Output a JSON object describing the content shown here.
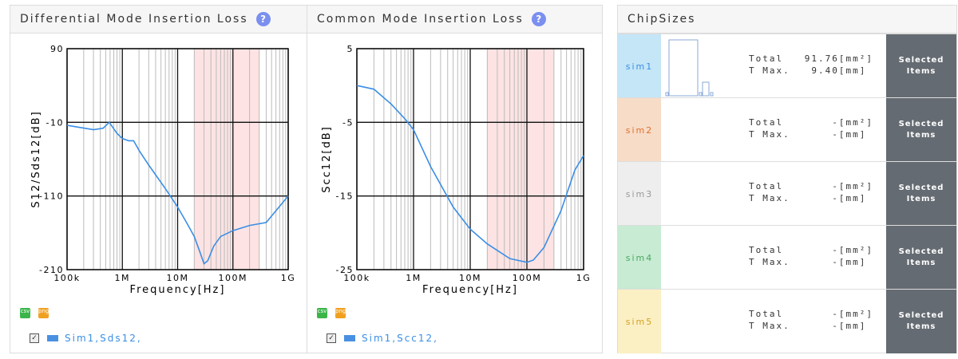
{
  "charts": [
    {
      "title": "Differential Mode Insertion Loss",
      "help": "?",
      "ylabel": "S12/Sds12[dB]",
      "xlabel": "Frequency[Hz]",
      "legend": "Sim1,Sds12,"
    },
    {
      "title": "Common Mode Insertion Loss",
      "help": "?",
      "ylabel": "Scc12[dB]",
      "xlabel": "Frequency[Hz]",
      "legend": "Sim1,Scc12,"
    }
  ],
  "chart_data": [
    {
      "type": "line",
      "xscale": "log",
      "xlim": [
        100000,
        1000000000
      ],
      "ylim": [
        -210,
        90
      ],
      "yticks": [
        90,
        -10,
        -110,
        -210
      ],
      "xticks": [
        "100k",
        "1M",
        "10M",
        "100M",
        "1G"
      ],
      "shaded_band": [
        20000000,
        300000000
      ],
      "grid": true,
      "color": "#3a8ee6",
      "series": [
        {
          "name": "Sim1,Sds12,",
          "points": [
            [
              100000.0,
              -14
            ],
            [
              300000.0,
              -20
            ],
            [
              450000.0,
              -18
            ],
            [
              580000.0,
              -10
            ],
            [
              800000.0,
              -25
            ],
            [
              1000000.0,
              -32
            ],
            [
              1300000.0,
              -35
            ],
            [
              1600000.0,
              -35
            ],
            [
              2000000.0,
              -48
            ],
            [
              3000000.0,
              -68
            ],
            [
              6000000.0,
              -100
            ],
            [
              10000000.0,
              -125
            ],
            [
              15000000.0,
              -148
            ],
            [
              20000000.0,
              -165
            ],
            [
              25000000.0,
              -185
            ],
            [
              30000000.0,
              -202
            ],
            [
              35000000.0,
              -198
            ],
            [
              45000000.0,
              -178
            ],
            [
              60000000.0,
              -165
            ],
            [
              100000000.0,
              -157
            ],
            [
              200000000.0,
              -150
            ],
            [
              400000000.0,
              -146
            ],
            [
              1000000000.0,
              -110
            ]
          ]
        }
      ]
    },
    {
      "type": "line",
      "xscale": "log",
      "xlim": [
        100000,
        1000000000
      ],
      "ylim": [
        -25,
        5
      ],
      "yticks": [
        5,
        -5,
        -15,
        -25
      ],
      "xticks": [
        "100k",
        "1M",
        "10M",
        "100M",
        "1G"
      ],
      "shaded_band": [
        20000000,
        300000000
      ],
      "grid": true,
      "color": "#3a8ee6",
      "series": [
        {
          "name": "Sim1,Scc12,",
          "points": [
            [
              100000.0,
              0
            ],
            [
              200000.0,
              -0.5
            ],
            [
              400000.0,
              -2.5
            ],
            [
              700000.0,
              -4.5
            ],
            [
              1000000.0,
              -6
            ],
            [
              2000000.0,
              -11
            ],
            [
              5000000.0,
              -16.5
            ],
            [
              10000000.0,
              -19.5
            ],
            [
              20000000.0,
              -21.5
            ],
            [
              50000000.0,
              -23.5
            ],
            [
              100000000.0,
              -24
            ],
            [
              130000000.0,
              -23.7
            ],
            [
              200000000.0,
              -22
            ],
            [
              400000000.0,
              -17
            ],
            [
              700000000.0,
              -11.5
            ],
            [
              1000000000.0,
              -9.5
            ]
          ]
        }
      ]
    }
  ],
  "chipsizes": {
    "title": "ChipSizes",
    "rows": [
      {
        "name": "sim1",
        "bg": "#c4e6f7",
        "fg": "#3a8ee6",
        "total_label": "Total",
        "total": "91.76",
        "total_unit": "[mm²]",
        "tmax_label": "T Max.",
        "tmax": "9.40",
        "tmax_unit": "[mm]",
        "button": "Selected Items"
      },
      {
        "name": "sim2",
        "bg": "#f7dcc7",
        "fg": "#e07030",
        "total_label": "Total",
        "total": "-",
        "total_unit": "[mm²]",
        "tmax_label": "T Max.",
        "tmax": "-",
        "tmax_unit": "[mm]",
        "button": "Selected Items"
      },
      {
        "name": "sim3",
        "bg": "#eeeeee",
        "fg": "#999999",
        "total_label": "Total",
        "total": "-",
        "total_unit": "[mm²]",
        "tmax_label": "T Max.",
        "tmax": "-",
        "tmax_unit": "[mm]",
        "button": "Selected Items"
      },
      {
        "name": "sim4",
        "bg": "#c7ebd3",
        "fg": "#4aa860",
        "total_label": "Total",
        "total": "-",
        "total_unit": "[mm²]",
        "tmax_label": "T Max.",
        "tmax": "-",
        "tmax_unit": "[mm]",
        "button": "Selected Items"
      },
      {
        "name": "sim5",
        "bg": "#fbf0c4",
        "fg": "#d4a020",
        "total_label": "Total",
        "total": "-",
        "total_unit": "[mm²]",
        "tmax_label": "T Max.",
        "tmax": "-",
        "tmax_unit": "[mm]",
        "button": "Selected Items"
      }
    ]
  }
}
